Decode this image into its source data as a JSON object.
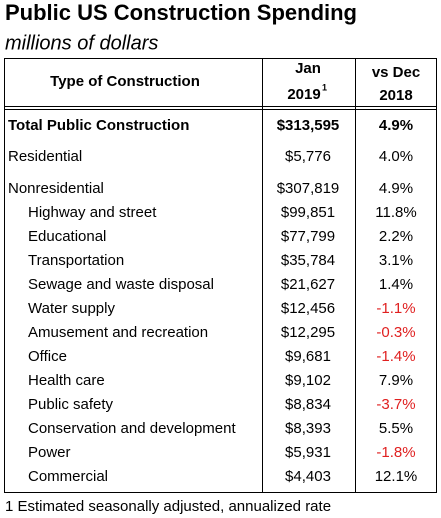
{
  "header": {
    "title": "Public US Construction Spending",
    "subtitle": "millions of dollars"
  },
  "table": {
    "columns": {
      "type": "Type of Construction",
      "jan": [
        "Jan",
        "2019",
        "1"
      ],
      "change": [
        "vs Dec",
        "2018"
      ]
    },
    "total": [
      "Total Public Construction",
      "$313,595",
      "4.9%"
    ],
    "rows": [
      [
        "Residential",
        "$5,776",
        "4.0%"
      ],
      [
        "Nonresidential",
        "$307,819",
        "4.9%"
      ]
    ],
    "nonresidential_components": [
      [
        "Highway and street",
        "$99,851",
        "11.8%"
      ],
      [
        "Educational",
        "$77,799",
        "2.2%"
      ],
      [
        "Transportation",
        "$35,784",
        "3.1%"
      ],
      [
        "Sewage and waste disposal",
        "$21,627",
        "1.4%"
      ],
      [
        "Water supply",
        "$12,456",
        "-1.1%"
      ],
      [
        "Amusement and recreation",
        "$12,295",
        "-0.3%"
      ],
      [
        "Office",
        "$9,681",
        "-1.4%"
      ],
      [
        "Health care",
        "$9,102",
        "7.9%"
      ],
      [
        "Public safety",
        "$8,834",
        "-3.7%"
      ],
      [
        "Conservation and development",
        "$8,393",
        "5.5%"
      ],
      [
        "Power",
        "$5,931",
        "-1.8%"
      ],
      [
        "Commercial",
        "$4,403",
        "12.1%"
      ]
    ]
  },
  "footnote": "1 Estimated seasonally adjusted, annualized rate"
}
